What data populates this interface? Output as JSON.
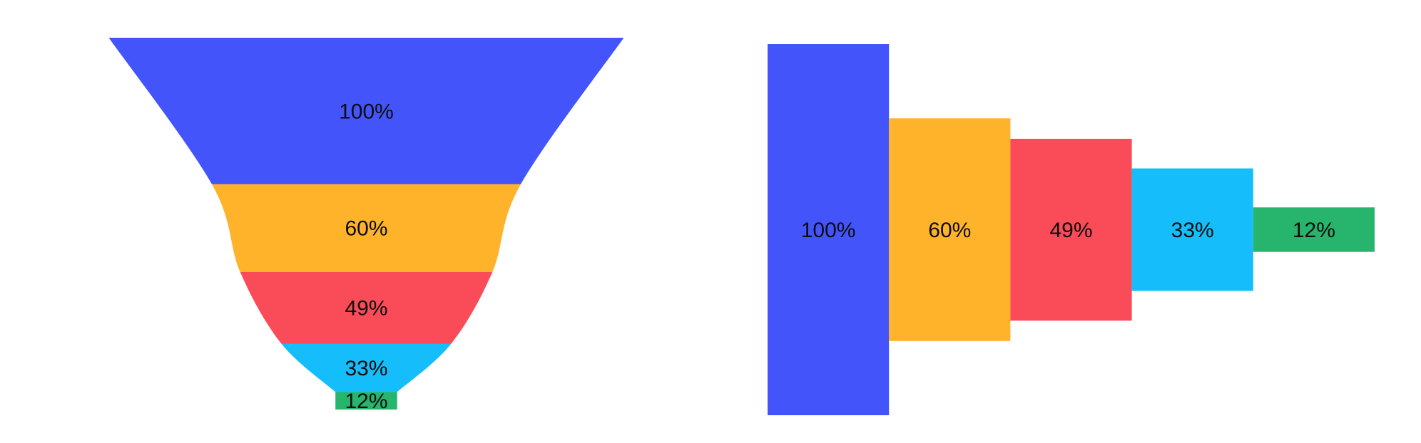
{
  "canvas": {
    "background": "#ffffff"
  },
  "chart_data": [
    {
      "type": "funnel",
      "variant": "vertical-tapered-funnel",
      "title": "",
      "labels": [
        "100%",
        "60%",
        "49%",
        "33%",
        "12%"
      ],
      "values": [
        100,
        60,
        49,
        33,
        12
      ],
      "colors": [
        "#4355FA",
        "#FFB32B",
        "#FA4B58",
        "#15BEFA",
        "#27B56E"
      ],
      "label_color": "#0c0c0c",
      "legend": "none",
      "axes": "none",
      "notes": "segment heights proportional to values; width at each stage proportional to value; smooth curved sides; last stage is a rectangular stem"
    },
    {
      "type": "funnel",
      "variant": "horizontal-bar-funnel",
      "title": "",
      "labels": [
        "100%",
        "60%",
        "49%",
        "33%",
        "12%"
      ],
      "values": [
        100,
        60,
        49,
        33,
        12
      ],
      "colors": [
        "#4355FA",
        "#FFB32B",
        "#FA4B58",
        "#15BEFA",
        "#27B56E"
      ],
      "label_color": "#0c0c0c",
      "legend": "none",
      "axes": "none",
      "notes": "equal-width contiguous bars, vertically centered on a shared midline, bar height proportional to value"
    }
  ]
}
